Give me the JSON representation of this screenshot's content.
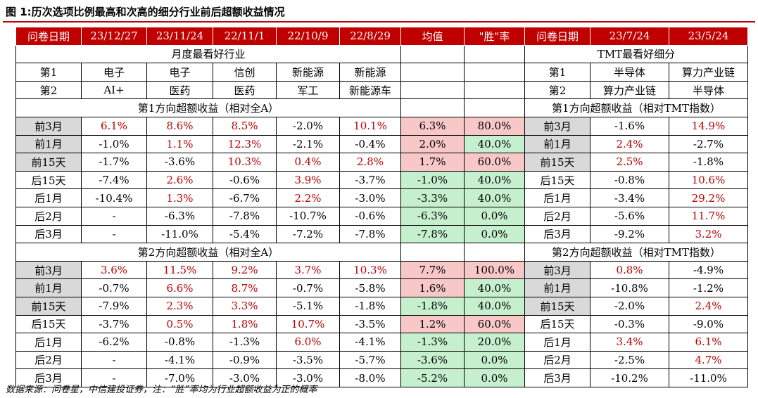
{
  "title": "图 1:历次选项比例最高和次高的细分行业前后超额收益情况",
  "footer": "数据来源：问卷星，中信建投证券，注：“胜”率均为行业超额收益为正的概率",
  "colors": {
    "header": "#c00000",
    "positive": "#c00000",
    "pink": "#f8c8c8",
    "green": "#c6efce",
    "grey": "#d9d9d9"
  },
  "header": [
    "问卷日期",
    "23/12/27",
    "23/11/24",
    "22/11/1",
    "22/10/9",
    "22/8/29",
    "均值",
    "\"胜\"率",
    "问卷日期",
    "23/7/24",
    "23/5/24"
  ],
  "left_group_title": "月度最看好行业",
  "right_group_title": "TMT最看好细分",
  "first_row": {
    "label": "第1",
    "items": [
      "电子",
      "电子",
      "信创",
      "新能源",
      "新能源"
    ],
    "r_label": "第1",
    "r_items": [
      "半导体",
      "算力产业链"
    ]
  },
  "second_row": {
    "label": "第2",
    "items": [
      "AI+",
      "医药",
      "医药",
      "军工",
      "新能源车"
    ],
    "r_label": "第2",
    "r_items": [
      "算力产业链",
      "半导体"
    ]
  },
  "sec1_left": "第1方向超额收益（相对全A）",
  "sec1_right": "第1方向超额收益（相对TMT指数）",
  "sec2_left": "第2方向超额收益（相对全A）",
  "sec2_right": "第2方向超额收益（相对TMT指数）",
  "sec1_rows": [
    {
      "label": "前3月",
      "v": [
        "6.1%",
        "8.6%",
        "8.5%",
        "-2.0%",
        "10.1%"
      ],
      "mean": "6.3%",
      "win": "80.0%",
      "rlabel": "前3月",
      "r": [
        "-1.6%",
        "14.9%"
      ]
    },
    {
      "label": "前1月",
      "v": [
        "-1.0%",
        "1.1%",
        "12.3%",
        "-2.1%",
        "-0.4%"
      ],
      "mean": "2.0%",
      "win": "40.0%",
      "rlabel": "前1月",
      "r": [
        "2.4%",
        "-2.7%"
      ]
    },
    {
      "label": "前15天",
      "v": [
        "-1.7%",
        "-3.6%",
        "10.3%",
        "0.4%",
        "2.8%"
      ],
      "mean": "1.7%",
      "win": "60.0%",
      "rlabel": "前15天",
      "r": [
        "2.5%",
        "-1.8%"
      ]
    },
    {
      "label": "后15天",
      "v": [
        "-7.4%",
        "2.6%",
        "-0.6%",
        "3.9%",
        "-3.7%"
      ],
      "mean": "-1.0%",
      "win": "40.0%",
      "rlabel": "后15天",
      "r": [
        "-0.8%",
        "10.6%"
      ]
    },
    {
      "label": "后1月",
      "v": [
        "-10.4%",
        "1.3%",
        "-6.7%",
        "2.2%",
        "-3.0%"
      ],
      "mean": "-3.3%",
      "win": "40.0%",
      "rlabel": "后1月",
      "r": [
        "-3.4%",
        "29.2%"
      ]
    },
    {
      "label": "后2月",
      "v": [
        "-",
        "-6.3%",
        "-7.8%",
        "-10.7%",
        "-0.6%"
      ],
      "mean": "-6.3%",
      "win": "0.0%",
      "rlabel": "后2月",
      "r": [
        "-5.6%",
        "11.7%"
      ]
    },
    {
      "label": "后3月",
      "v": [
        "-",
        "-11.0%",
        "-5.4%",
        "-7.2%",
        "-7.8%"
      ],
      "mean": "-7.8%",
      "win": "0.0%",
      "rlabel": "后3月",
      "r": [
        "-9.2%",
        "3.2%"
      ]
    }
  ],
  "sec2_rows": [
    {
      "label": "前3月",
      "v": [
        "3.6%",
        "11.5%",
        "9.2%",
        "3.7%",
        "10.3%"
      ],
      "mean": "7.7%",
      "win": "100.0%",
      "rlabel": "前3月",
      "r": [
        "0.8%",
        "-4.9%"
      ]
    },
    {
      "label": "前1月",
      "v": [
        "-0.7%",
        "6.6%",
        "8.7%",
        "-0.7%",
        "-5.8%"
      ],
      "mean": "1.6%",
      "win": "40.0%",
      "rlabel": "前1月",
      "r": [
        "-10.8%",
        "-1.2%"
      ]
    },
    {
      "label": "前15天",
      "v": [
        "-7.9%",
        "2.3%",
        "3.3%",
        "-5.1%",
        "-1.8%"
      ],
      "mean": "-1.8%",
      "win": "40.0%",
      "rlabel": "前15天",
      "r": [
        "-2.0%",
        "2.4%"
      ]
    },
    {
      "label": "后15天",
      "v": [
        "-3.7%",
        "0.5%",
        "1.8%",
        "10.7%",
        "-3.5%"
      ],
      "mean": "1.2%",
      "win": "60.0%",
      "rlabel": "后15天",
      "r": [
        "-0.3%",
        "-9.0%"
      ]
    },
    {
      "label": "后1月",
      "v": [
        "-6.2%",
        "-0.8%",
        "-1.3%",
        "6.0%",
        "-4.1%"
      ],
      "mean": "-1.3%",
      "win": "20.0%",
      "rlabel": "后1月",
      "r": [
        "3.4%",
        "6.1%"
      ]
    },
    {
      "label": "后2月",
      "v": [
        "-",
        "-4.1%",
        "-0.9%",
        "-3.5%",
        "-5.7%"
      ],
      "mean": "-3.6%",
      "win": "0.0%",
      "rlabel": "后2月",
      "r": [
        "-2.5%",
        "4.7%"
      ]
    },
    {
      "label": "后3月",
      "v": [
        "-",
        "-7.0%",
        "-3.0%",
        "-3.0%",
        "-8.0%"
      ],
      "mean": "-5.2%",
      "win": "0.0%",
      "rlabel": "后3月",
      "r": [
        "-10.2%",
        "-11.0%"
      ]
    }
  ]
}
